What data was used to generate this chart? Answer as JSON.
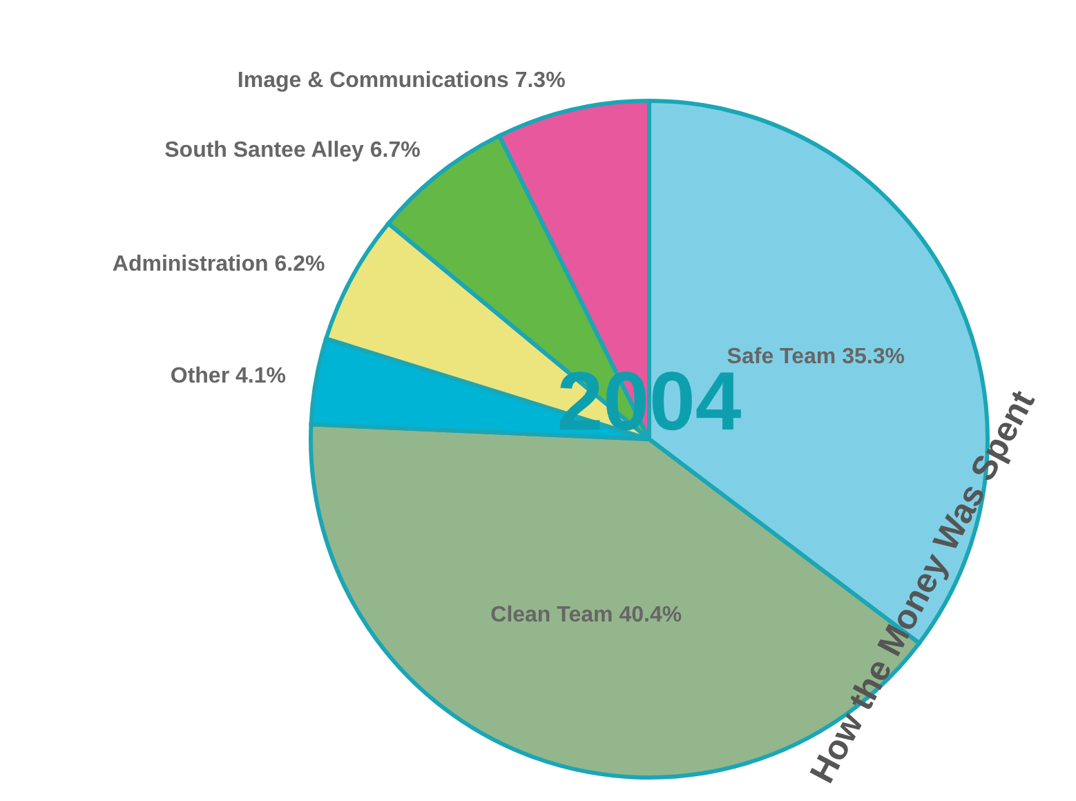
{
  "chart_data": {
    "type": "pie",
    "title": "2004",
    "subtitle": "How the Money Was Spent",
    "categories": [
      "Safe Team",
      "Clean Team",
      "Other",
      "Administration",
      "South Santee Alley",
      "Image & Communications"
    ],
    "values": [
      35.3,
      40.4,
      4.1,
      6.2,
      6.7,
      7.3
    ],
    "colors": [
      "#7fd0e6",
      "#94b68c",
      "#00b4d6",
      "#ece47c",
      "#63b846",
      "#e8589c"
    ],
    "value_labels": [
      "35.3%",
      "40.4%",
      "4.1%",
      "6.2%",
      "6.7%",
      "7.3%"
    ]
  }
}
